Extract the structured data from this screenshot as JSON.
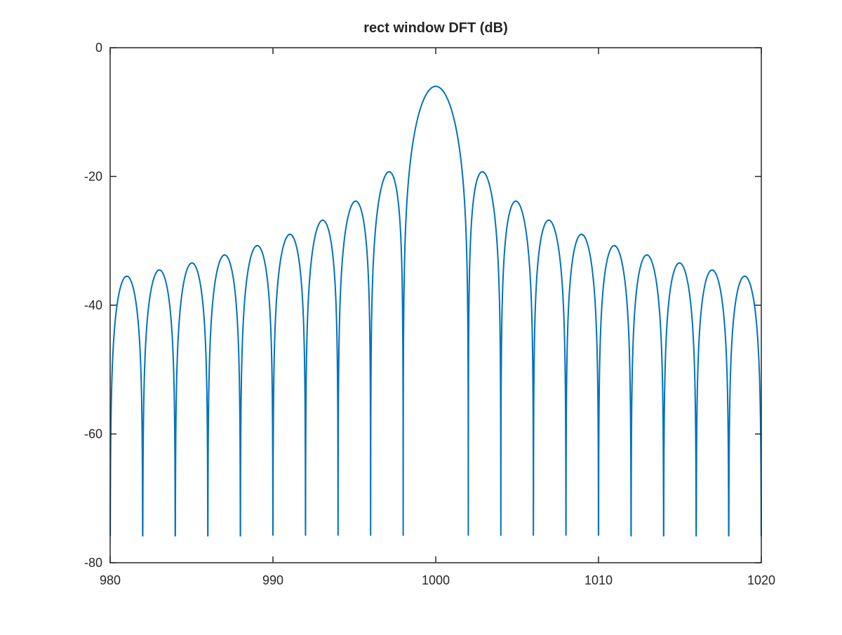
{
  "chart_data": {
    "type": "line",
    "title": "rect window DFT (dB)",
    "xlabel": "",
    "ylabel": "",
    "xlim": [
      980,
      1020
    ],
    "ylim": [
      -80,
      0
    ],
    "xticks": [
      980,
      990,
      1000,
      1010,
      1020
    ],
    "yticks": [
      0,
      -20,
      -40,
      -60,
      -80
    ],
    "grid": false,
    "legend": "none",
    "series": [
      {
        "line_color": "#0072bd",
        "description_formula": "20*log10(|sin(pi*(f-1000)/2)/(pi*(f-1000)/2)|)-6.02, floored at -75.8",
        "main_lobe_peak": {
          "x": 1000,
          "y": -6.0
        },
        "floor": -75.8,
        "sidelobe_peaks": [
          {
            "x": 981.0,
            "y": -35.6
          },
          {
            "x": 983.0,
            "y": -34.6
          },
          {
            "x": 985.0,
            "y": -33.5
          },
          {
            "x": 987.0,
            "y": -32.3
          },
          {
            "x": 989.0,
            "y": -30.9
          },
          {
            "x": 991.0,
            "y": -29.2
          },
          {
            "x": 993.0,
            "y": -26.9
          },
          {
            "x": 995.0,
            "y": -24.0
          },
          {
            "x": 997.1,
            "y": -19.4
          },
          {
            "x": 1002.9,
            "y": -19.4
          },
          {
            "x": 1005.0,
            "y": -24.0
          },
          {
            "x": 1007.0,
            "y": -26.9
          },
          {
            "x": 1009.0,
            "y": -29.2
          },
          {
            "x": 1011.0,
            "y": -30.9
          },
          {
            "x": 1013.0,
            "y": -32.3
          },
          {
            "x": 1015.0,
            "y": -33.5
          },
          {
            "x": 1017.0,
            "y": -34.6
          },
          {
            "x": 1019.0,
            "y": -35.6
          }
        ],
        "nulls_x": [
          982,
          984,
          986,
          988,
          990,
          992,
          994,
          996,
          998,
          1002,
          1004,
          1006,
          1008,
          1010,
          1012,
          1014,
          1016,
          1018
        ]
      }
    ]
  }
}
